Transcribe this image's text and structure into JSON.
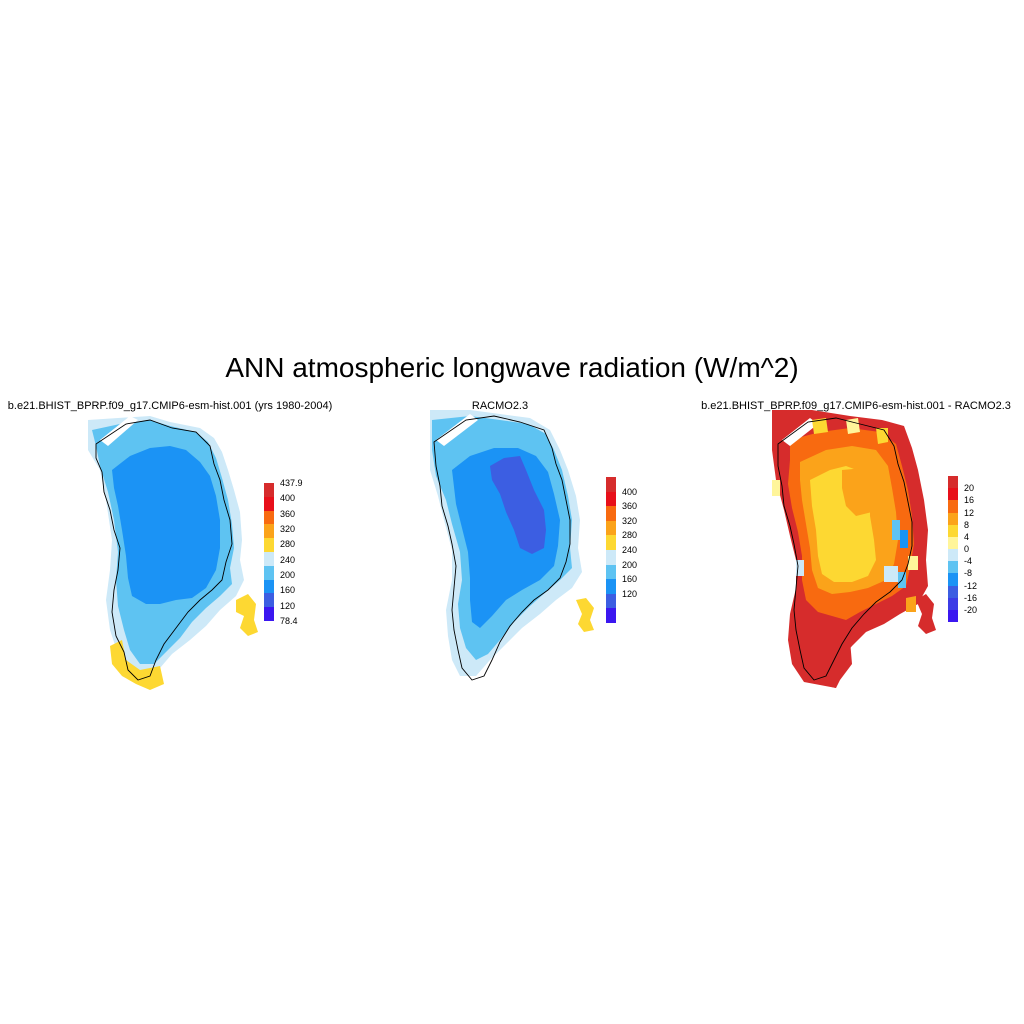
{
  "figure": {
    "title": "ANN atmospheric longwave radiation (W/m^2)"
  },
  "panels": [
    {
      "id": "model",
      "title": "b.e21.BHIST_BPRP.f09_g17.CMIP6-esm-hist.001 (yrs 1980-2004)",
      "colorbar": {
        "labels": [
          "437.9",
          "400",
          "360",
          "320",
          "280",
          "240",
          "200",
          "160",
          "120",
          "78.4"
        ],
        "colors": [
          "#d62c2c",
          "#e8101a",
          "#f86a10",
          "#fba31a",
          "#fdd832",
          "#cde9f8",
          "#5ec3f2",
          "#1b93f5",
          "#3c5ee2",
          "#3b17f0"
        ]
      }
    },
    {
      "id": "obs",
      "title": "RACMO2.3",
      "colorbar": {
        "labels": [
          "400",
          "360",
          "320",
          "280",
          "240",
          "200",
          "160",
          "120"
        ],
        "colors": [
          "#d62c2c",
          "#e8101a",
          "#f86a10",
          "#fba31a",
          "#fdd832",
          "#cde9f8",
          "#5ec3f2",
          "#1b93f5",
          "#3c5ee2",
          "#3b17f0"
        ]
      }
    },
    {
      "id": "diff",
      "title": "b.e21.BHIST_BPRP.f09_g17.CMIP6-esm-hist.001 - RACMO2.3",
      "colorbar": {
        "labels": [
          "20",
          "16",
          "12",
          "8",
          "4",
          "0",
          "-4",
          "-8",
          "-12",
          "-16",
          "-20"
        ],
        "colors": [
          "#d62c2c",
          "#e8101a",
          "#f86a10",
          "#fba31a",
          "#fdd832",
          "#fff59a",
          "#cde9f8",
          "#5ec3f2",
          "#1b93f5",
          "#3c5ee2",
          "#3c3ce6",
          "#3b17f0"
        ]
      }
    }
  ]
}
